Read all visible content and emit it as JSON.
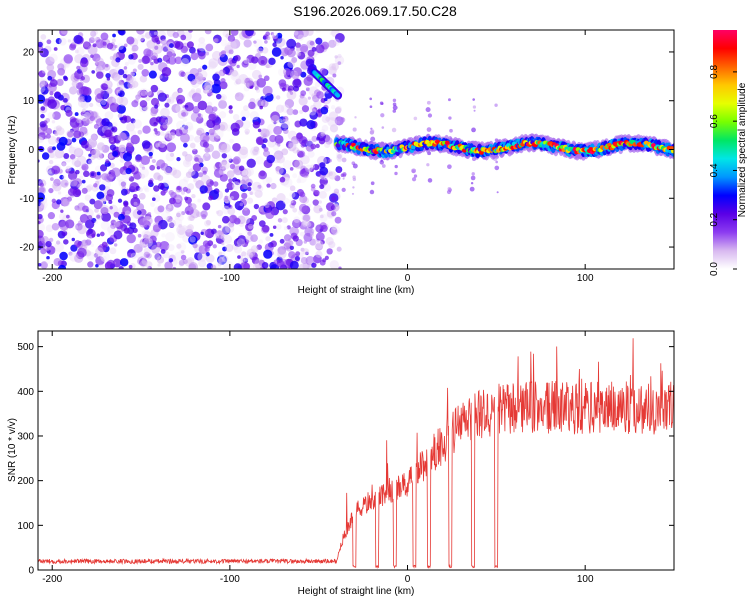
{
  "title": "S196.2026.069.17.50.C28",
  "chart_data": [
    {
      "type": "heatmap",
      "xlabel": "Height of straight line (km)",
      "ylabel": "Frequency (Hz)",
      "xlim": [
        -208,
        150
      ],
      "ylim": [
        -24.5,
        24.5
      ],
      "xticks": [
        -200,
        -100,
        0,
        100
      ],
      "yticks": [
        -20,
        -10,
        0,
        10,
        20
      ],
      "colorbar": {
        "label": "Normalized spectral amplitude",
        "range": [
          0,
          0.97
        ],
        "ticks": [
          0.0,
          0.2,
          0.4,
          0.6,
          0.8
        ],
        "colors": [
          "#ffffff",
          "#d8b8f0",
          "#8c3cf0",
          "#5a00e6",
          "#0000ff",
          "#0096ff",
          "#00e6e6",
          "#00e664",
          "#78ff00",
          "#e6ff00",
          "#ffc800",
          "#ff6400",
          "#ff0000",
          "#ff0064"
        ]
      },
      "regions": [
        {
          "name": "noise",
          "x_range": [
            -208,
            -38
          ],
          "freq_range": [
            -24.5,
            24.5
          ],
          "amplitude": [
            0.02,
            0.3
          ]
        },
        {
          "name": "early tone",
          "x_range": [
            -53,
            -39
          ],
          "freq_start": 16,
          "freq_end": 11,
          "amplitude": [
            0.3,
            0.55
          ]
        },
        {
          "name": "carrier",
          "x_range": [
            -40,
            150
          ],
          "freq": 0.5,
          "amplitude": [
            0.2,
            0.97
          ]
        }
      ]
    },
    {
      "type": "line",
      "xlabel": "Height of straight line (km)",
      "ylabel": "SNR (10 * v/v)",
      "xlim": [
        -208,
        150
      ],
      "ylim": [
        0,
        535
      ],
      "xticks": [
        -200,
        -100,
        0,
        100
      ],
      "yticks": [
        0,
        100,
        200,
        300,
        400,
        500
      ],
      "color": "#e53935",
      "series": [
        {
          "name": "SNR",
          "x_range": [
            -208,
            150
          ],
          "points": 1400,
          "trend": [
            [
              -208,
              18
            ],
            [
              -40,
              18
            ],
            [
              -37,
              60
            ],
            [
              -30,
              120
            ],
            [
              -20,
              150
            ],
            [
              -10,
              170
            ],
            [
              0,
              180
            ],
            [
              10,
              230
            ],
            [
              20,
              270
            ],
            [
              30,
              310
            ],
            [
              40,
              330
            ],
            [
              50,
              335
            ],
            [
              60,
              345
            ],
            [
              100,
              345
            ],
            [
              150,
              345
            ]
          ],
          "dropouts": [
            -30,
            -17,
            -7,
            4,
            12,
            24,
            37,
            50
          ],
          "dropout_value": 5,
          "peak_values": [
            500,
            540,
            520,
            510
          ]
        }
      ]
    }
  ]
}
